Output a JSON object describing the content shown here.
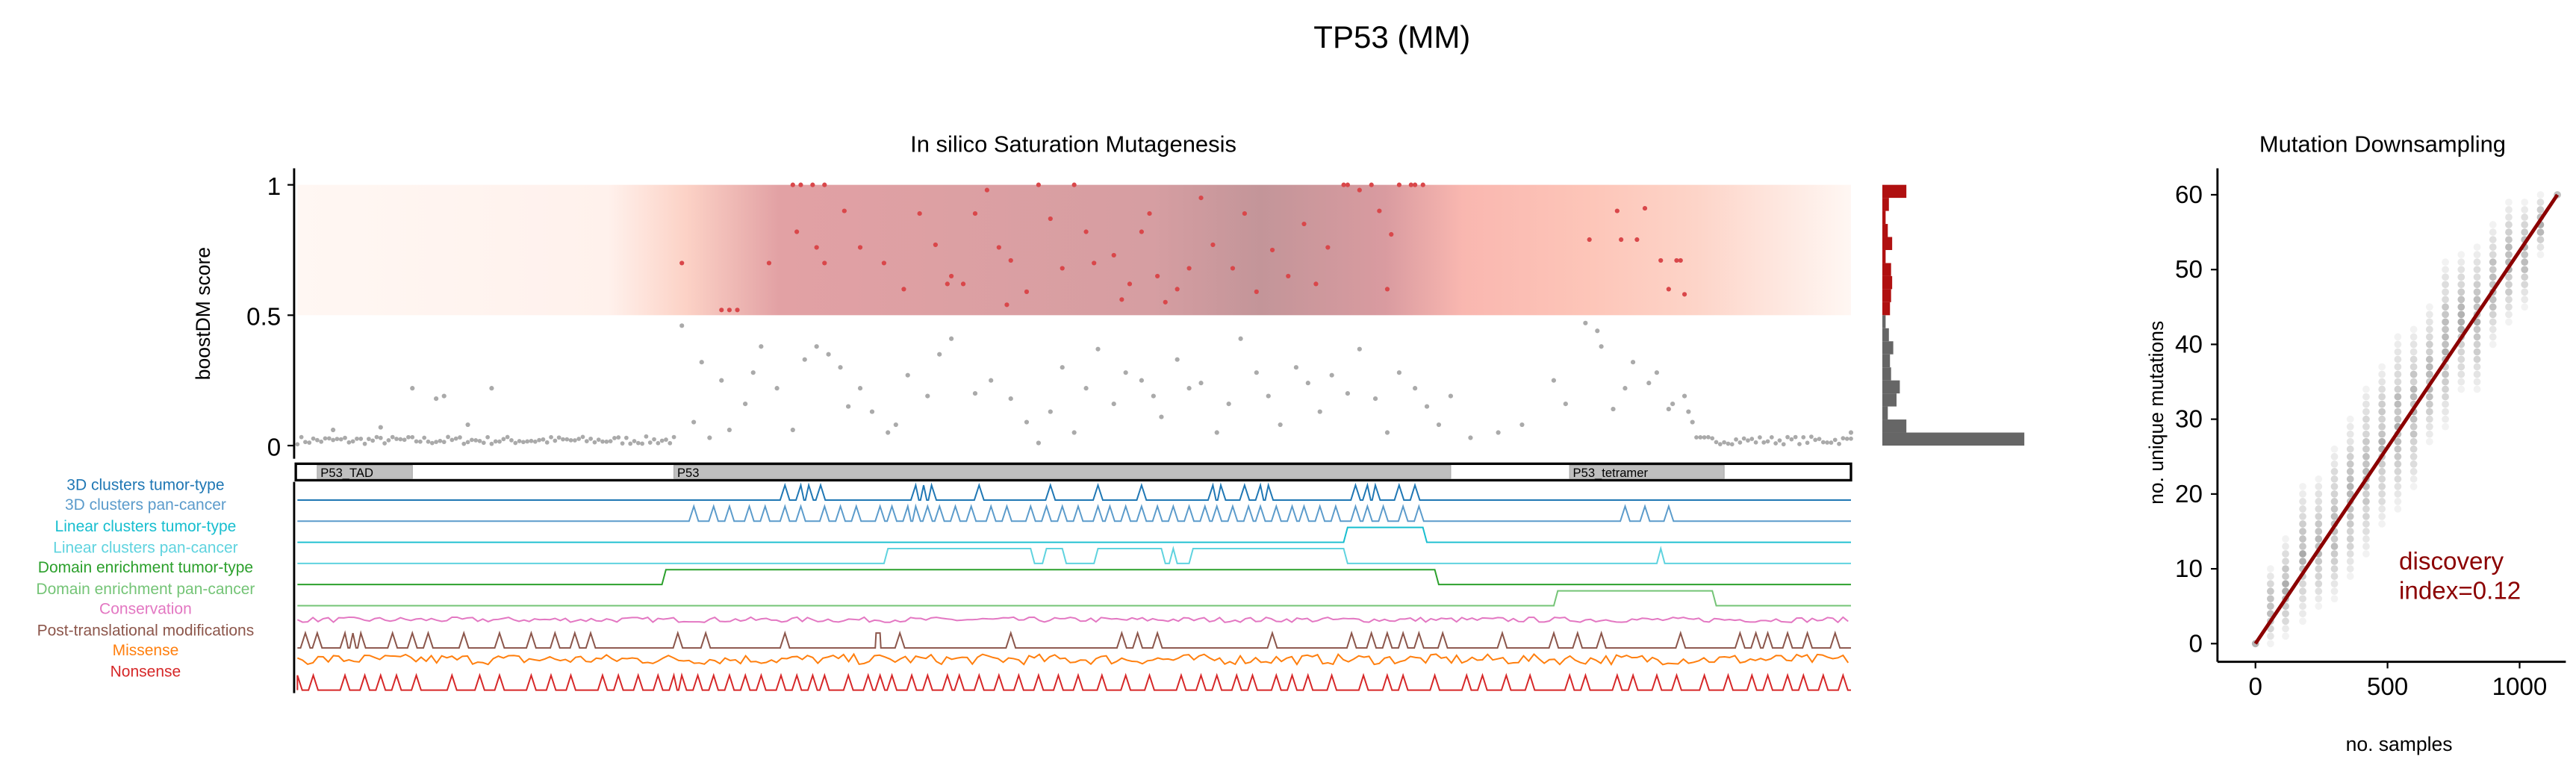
{
  "figure_title": "TP53 (MM)",
  "chart_data": [
    {
      "type": "scatter",
      "title": "In silico Saturation Mutagenesis",
      "ylabel": "boostDM score",
      "xlabel": "",
      "protein_length": 393,
      "ylim": [
        0,
        1
      ],
      "yticks": [
        "0",
        "0.5",
        "1"
      ],
      "threshold": 0.5,
      "driver_points": [
        [
          98,
          0.7
        ],
        [
          108,
          0.52
        ],
        [
          110,
          0.52
        ],
        [
          112,
          0.52
        ],
        [
          120,
          0.7
        ],
        [
          126,
          1.0
        ],
        [
          128,
          1.0
        ],
        [
          131,
          1.0
        ],
        [
          134,
          1.0
        ],
        [
          127,
          0.82
        ],
        [
          132,
          0.76
        ],
        [
          134,
          0.7
        ],
        [
          139,
          0.9
        ],
        [
          143,
          0.76
        ],
        [
          149,
          0.7
        ],
        [
          154,
          0.6
        ],
        [
          158,
          0.89
        ],
        [
          162,
          0.77
        ],
        [
          165,
          0.62
        ],
        [
          166,
          0.65
        ],
        [
          169,
          0.62
        ],
        [
          172,
          0.89
        ],
        [
          175,
          0.98
        ],
        [
          178,
          0.76
        ],
        [
          180,
          0.54
        ],
        [
          181,
          0.71
        ],
        [
          185,
          0.59
        ],
        [
          188,
          1.0
        ],
        [
          191,
          0.87
        ],
        [
          194,
          0.68
        ],
        [
          197,
          1.0
        ],
        [
          200,
          0.82
        ],
        [
          202,
          0.7
        ],
        [
          207,
          0.73
        ],
        [
          209,
          0.56
        ],
        [
          211,
          0.62
        ],
        [
          214,
          0.82
        ],
        [
          216,
          0.89
        ],
        [
          218,
          0.65
        ],
        [
          220,
          0.55
        ],
        [
          223,
          0.6
        ],
        [
          226,
          0.68
        ],
        [
          229,
          0.95
        ],
        [
          232,
          0.77
        ],
        [
          237,
          0.68
        ],
        [
          240,
          0.89
        ],
        [
          243,
          0.59
        ],
        [
          247,
          0.75
        ],
        [
          251,
          0.65
        ],
        [
          255,
          0.85
        ],
        [
          258,
          0.62
        ],
        [
          261,
          0.76
        ],
        [
          265,
          1.0
        ],
        [
          266,
          1.0
        ],
        [
          269,
          0.98
        ],
        [
          272,
          1.0
        ],
        [
          274,
          0.9
        ],
        [
          276,
          0.6
        ],
        [
          277,
          0.81
        ],
        [
          279,
          1.0
        ],
        [
          282,
          1.0
        ],
        [
          283,
          1.0
        ],
        [
          285,
          1.0
        ],
        [
          327,
          0.79
        ],
        [
          334,
          0.9
        ],
        [
          335,
          0.79
        ],
        [
          339,
          0.79
        ],
        [
          341,
          0.91
        ],
        [
          345,
          0.71
        ],
        [
          349,
          0.71
        ],
        [
          350,
          0.71
        ],
        [
          347,
          0.6
        ],
        [
          351,
          0.58
        ]
      ],
      "passenger_points": [
        [
          10,
          0.06
        ],
        [
          22,
          0.07
        ],
        [
          30,
          0.22
        ],
        [
          36,
          0.18
        ],
        [
          38,
          0.19
        ],
        [
          44,
          0.08
        ],
        [
          50,
          0.22
        ],
        [
          98,
          0.46
        ],
        [
          101,
          0.09
        ],
        [
          103,
          0.32
        ],
        [
          105,
          0.03
        ],
        [
          108,
          0.25
        ],
        [
          110,
          0.06
        ],
        [
          114,
          0.16
        ],
        [
          116,
          0.28
        ],
        [
          118,
          0.38
        ],
        [
          122,
          0.22
        ],
        [
          126,
          0.06
        ],
        [
          129,
          0.33
        ],
        [
          132,
          0.38
        ],
        [
          135,
          0.35
        ],
        [
          138,
          0.3
        ],
        [
          140,
          0.15
        ],
        [
          143,
          0.22
        ],
        [
          146,
          0.13
        ],
        [
          150,
          0.05
        ],
        [
          152,
          0.08
        ],
        [
          155,
          0.27
        ],
        [
          160,
          0.19
        ],
        [
          163,
          0.35
        ],
        [
          166,
          0.41
        ],
        [
          172,
          0.2
        ],
        [
          176,
          0.25
        ],
        [
          181,
          0.18
        ],
        [
          185,
          0.09
        ],
        [
          188,
          0.01
        ],
        [
          191,
          0.13
        ],
        [
          194,
          0.3
        ],
        [
          197,
          0.05
        ],
        [
          200,
          0.22
        ],
        [
          203,
          0.37
        ],
        [
          207,
          0.16
        ],
        [
          210,
          0.28
        ],
        [
          214,
          0.25
        ],
        [
          217,
          0.19
        ],
        [
          219,
          0.11
        ],
        [
          223,
          0.33
        ],
        [
          226,
          0.22
        ],
        [
          229,
          0.24
        ],
        [
          233,
          0.05
        ],
        [
          236,
          0.16
        ],
        [
          239,
          0.41
        ],
        [
          243,
          0.28
        ],
        [
          246,
          0.19
        ],
        [
          249,
          0.08
        ],
        [
          253,
          0.3
        ],
        [
          256,
          0.24
        ],
        [
          259,
          0.13
        ],
        [
          262,
          0.27
        ],
        [
          266,
          0.2
        ],
        [
          269,
          0.37
        ],
        [
          273,
          0.18
        ],
        [
          276,
          0.05
        ],
        [
          279,
          0.28
        ],
        [
          283,
          0.22
        ],
        [
          286,
          0.15
        ],
        [
          289,
          0.08
        ],
        [
          292,
          0.19
        ],
        [
          297,
          0.03
        ],
        [
          304,
          0.05
        ],
        [
          310,
          0.08
        ],
        [
          318,
          0.25
        ],
        [
          321,
          0.16
        ],
        [
          326,
          0.47
        ],
        [
          329,
          0.44
        ],
        [
          330,
          0.38
        ],
        [
          333,
          0.14
        ],
        [
          336,
          0.22
        ],
        [
          338,
          0.32
        ],
        [
          342,
          0.24
        ],
        [
          344,
          0.28
        ],
        [
          347,
          0.14
        ],
        [
          348,
          0.16
        ],
        [
          351,
          0.19
        ],
        [
          352,
          0.13
        ],
        [
          353,
          0.09
        ],
        [
          393,
          0.05
        ]
      ],
      "baseline_ranges": [
        [
          1,
          96
        ],
        [
          354,
          393
        ]
      ],
      "baseline_score": 0.02,
      "domains": [
        {
          "label": "P53_TAD",
          "start": 6,
          "end": 30
        },
        {
          "label": "P53",
          "start": 96,
          "end": 292
        },
        {
          "label": "P53_tetramer",
          "start": 322,
          "end": 361
        }
      ],
      "histogram": {
        "bin_width": 0.05,
        "bins_top_to_bottom": [
          22,
          6,
          3,
          5,
          9,
          3,
          8,
          9,
          8,
          7,
          3,
          6,
          10,
          7,
          8,
          16,
          13,
          5,
          22,
          130
        ],
        "driver_bins": 10
      },
      "tracks": [
        {
          "label": "3D clusters tumor-type",
          "color": "#1f77b4",
          "kind": "peaks",
          "peaks": [
            124,
            128,
            130,
            133,
            157,
            159,
            161,
            173,
            191,
            203,
            214,
            232,
            234,
            240,
            244,
            246,
            268,
            271,
            273,
            279,
            283
          ]
        },
        {
          "label": "3D clusters pan-cancer",
          "color": "#5b9bcb",
          "kind": "peaks",
          "peaks": [
            101,
            106,
            110,
            115,
            119,
            124,
            128,
            134,
            138,
            142,
            148,
            151,
            155,
            157,
            160,
            163,
            167,
            171,
            176,
            180,
            186,
            190,
            194,
            198,
            203,
            206,
            210,
            214,
            218,
            222,
            226,
            230,
            233,
            237,
            241,
            244,
            248,
            252,
            255,
            259,
            263,
            268,
            271,
            275,
            280,
            284,
            336,
            341,
            347
          ]
        },
        {
          "label": "Linear clusters tumor-type",
          "color": "#17becf",
          "kind": "intervals",
          "intervals": [
            [
              266,
              285
            ]
          ]
        },
        {
          "label": "Linear clusters pan-cancer",
          "color": "#5fd3df",
          "kind": "intervals",
          "intervals": [
            [
              150,
              186
            ],
            [
              190,
              194
            ],
            [
              203,
              219
            ],
            [
              222,
              222
            ],
            [
              227,
              265
            ],
            [
              345,
              345
            ]
          ]
        },
        {
          "label": "Domain enrichment tumor-type",
          "color": "#2ca02c",
          "kind": "intervals",
          "intervals": [
            [
              94,
              288
            ]
          ]
        },
        {
          "label": "Domain enrichment pan-cancer",
          "color": "#74c476",
          "kind": "intervals",
          "intervals": [
            [
              319,
              358
            ]
          ]
        },
        {
          "label": "Conservation",
          "color": "#e377c2",
          "kind": "noise",
          "amplitude": 0.35
        },
        {
          "label": "Post-translational modifications",
          "color": "#8c564b",
          "kind": "peaks",
          "peaks": [
            3,
            6,
            13,
            15,
            17,
            25,
            30,
            34,
            43,
            52,
            60,
            66,
            71,
            75,
            97,
            104,
            124,
            147,
            148,
            153,
            181,
            209,
            213,
            218,
            247,
            267,
            272,
            276,
            280,
            284,
            290,
            305,
            318,
            324,
            330,
            350,
            365,
            369,
            372,
            377,
            382,
            389
          ]
        },
        {
          "label": "Missense",
          "color": "#ff7f0e",
          "kind": "noise",
          "amplitude": 0.7
        },
        {
          "label": "Nonsense",
          "color": "#d62728",
          "kind": "peaks",
          "peaks": [
            1,
            5,
            13,
            18,
            22,
            26,
            31,
            40,
            47,
            52,
            60,
            65,
            70,
            78,
            82,
            87,
            92,
            96,
            98,
            102,
            106,
            110,
            114,
            118,
            123,
            127,
            131,
            134,
            140,
            145,
            148,
            151,
            156,
            160,
            165,
            168,
            173,
            178,
            183,
            188,
            193,
            198,
            204,
            210,
            216,
            224,
            229,
            233,
            238,
            242,
            248,
            252,
            256,
            262,
            270,
            276,
            280,
            288,
            296,
            300,
            306,
            312,
            322,
            326,
            334,
            338,
            344,
            349,
            356,
            362,
            368,
            372,
            377,
            381,
            386,
            391
          ]
        }
      ]
    },
    {
      "type": "scatter",
      "title": "Mutation Downsampling",
      "xlabel": "no. samples",
      "ylabel": "no. unique mutations",
      "xlim": [
        -60,
        1190
      ],
      "ylim": [
        -3,
        63
      ],
      "xticks": [
        "0",
        "500",
        "1000"
      ],
      "yticks": [
        "0",
        "10",
        "20",
        "30",
        "40",
        "50",
        "60"
      ],
      "columns": [
        [
          0,
          0,
          0
        ],
        [
          57,
          0,
          10
        ],
        [
          114,
          1,
          14
        ],
        [
          179,
          3,
          21
        ],
        [
          239,
          5,
          22
        ],
        [
          299,
          6,
          26
        ],
        [
          359,
          9,
          30
        ],
        [
          419,
          12,
          34
        ],
        [
          479,
          16,
          37
        ],
        [
          539,
          18,
          41
        ],
        [
          599,
          21,
          42
        ],
        [
          659,
          27,
          45
        ],
        [
          719,
          29,
          51
        ],
        [
          779,
          34,
          52
        ],
        [
          839,
          34,
          53
        ],
        [
          899,
          40,
          56
        ],
        [
          959,
          43,
          59
        ],
        [
          1019,
          45,
          59
        ],
        [
          1079,
          52,
          60
        ],
        [
          1143,
          60,
          60
        ]
      ],
      "fit_line": [
        [
          0,
          0
        ],
        [
          1143,
          60
        ]
      ],
      "fit_color": "#8b0000",
      "annotation": [
        "discovery",
        "index=0.12"
      ]
    }
  ]
}
